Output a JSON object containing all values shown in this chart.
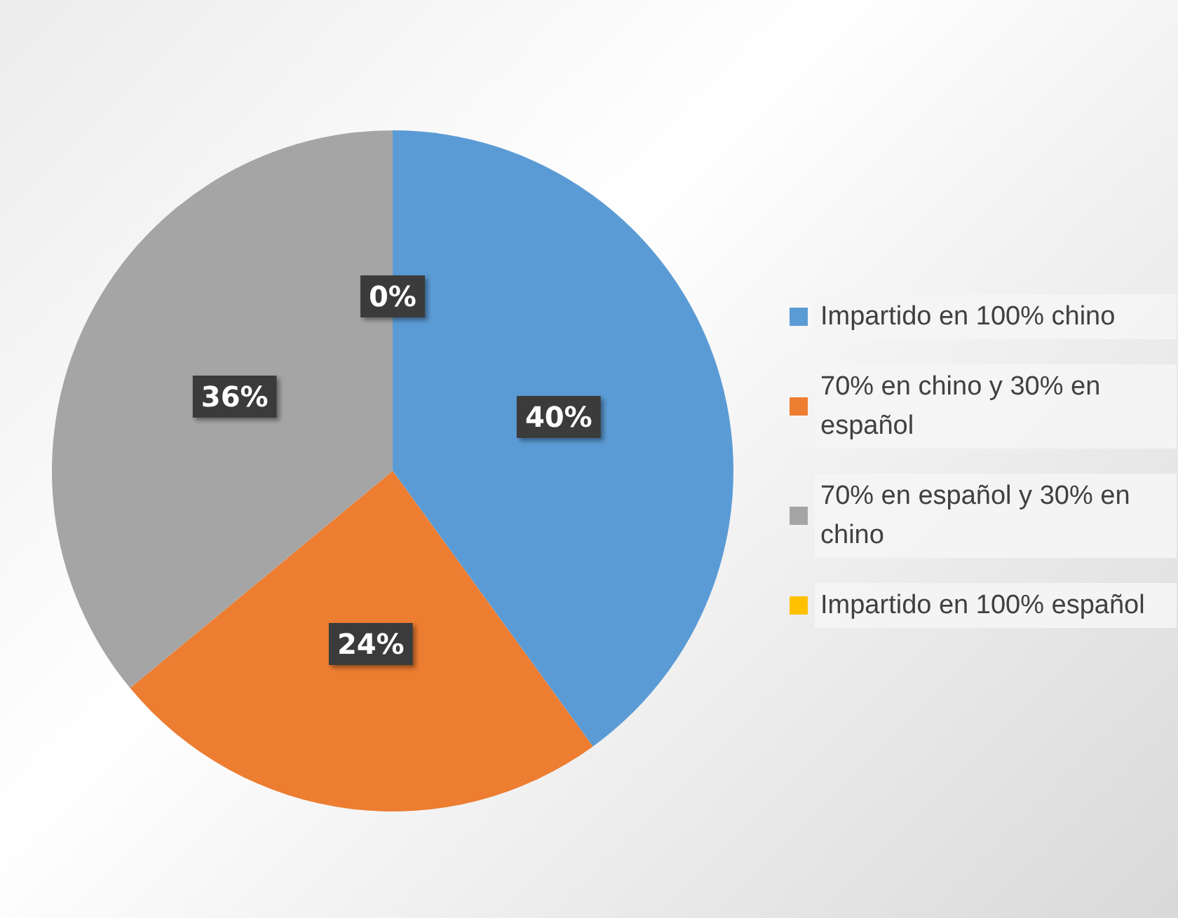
{
  "chart_data": {
    "type": "pie",
    "categories": [
      "Impartido en 100% chino",
      "70% en chino y 30% en español",
      "70% en español y 30% en chino",
      "Impartido en 100% español"
    ],
    "values": [
      40,
      24,
      36,
      0
    ],
    "colors": [
      "#5b9bd5",
      "#ed7d31",
      "#a5a5a5",
      "#ffc000"
    ],
    "value_labels": [
      "40%",
      "24%",
      "36%",
      "0%"
    ],
    "legend": "right"
  }
}
